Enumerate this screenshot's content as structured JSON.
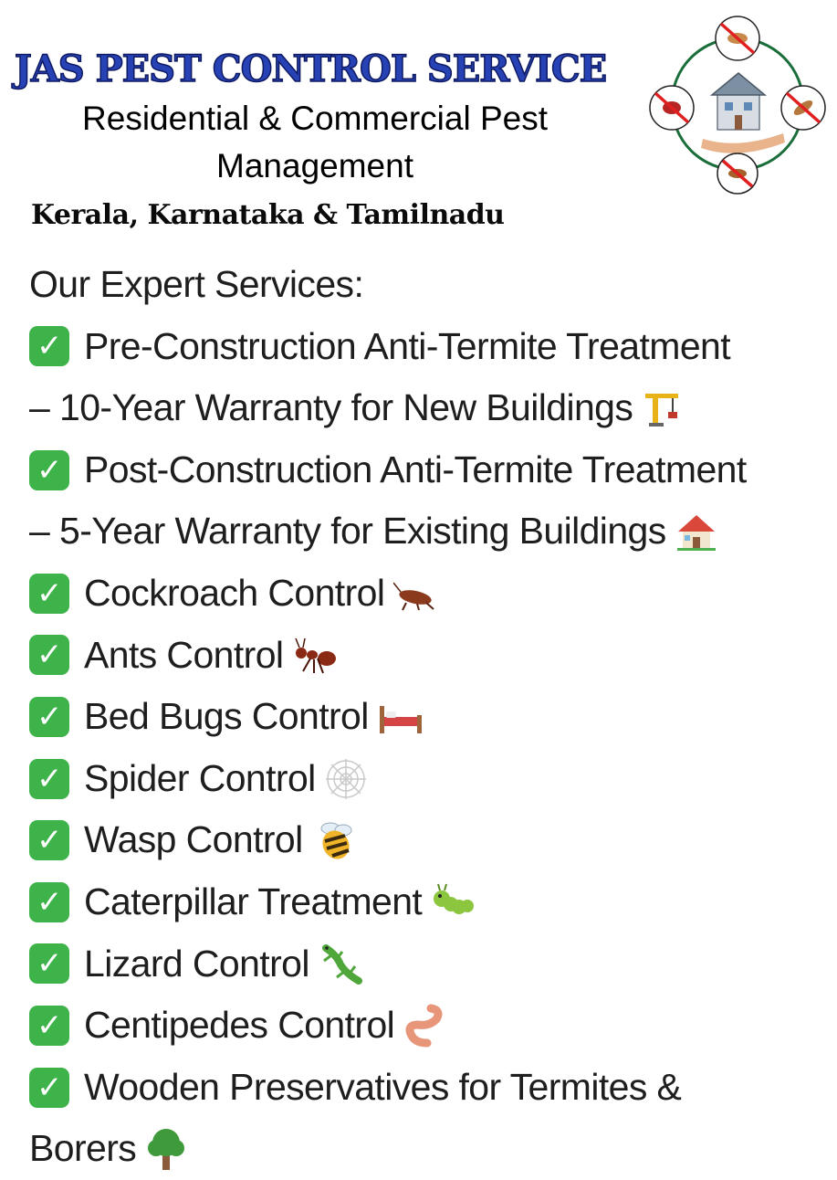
{
  "header": {
    "brand": "JAS PEST CONTROL SERVICE",
    "tagline_line1": "Residential & Commercial Pest",
    "tagline_line2": "Management",
    "regions": "Kerala, Karnataka & Tamilnadu"
  },
  "services": {
    "heading": "Our Expert Services:",
    "items": [
      {
        "line1": "Pre-Construction Anti-Termite Treatment",
        "line2": "– 10-Year Warranty for New Buildings",
        "icon": "crane-icon"
      },
      {
        "line1": "Post-Construction Anti-Termite Treatment",
        "line2": "– 5-Year Warranty for Existing Buildings",
        "icon": "house-icon"
      },
      {
        "line1": "Cockroach Control",
        "icon": "cockroach-icon"
      },
      {
        "line1": "Ants Control",
        "icon": "ant-icon"
      },
      {
        "line1": "Bed Bugs Control",
        "icon": "bed-icon"
      },
      {
        "line1": "Spider Control",
        "icon": "spider-web-icon"
      },
      {
        "line1": "Wasp Control",
        "icon": "bee-icon"
      },
      {
        "line1": "Caterpillar Treatment",
        "icon": "caterpillar-icon"
      },
      {
        "line1": "Lizard Control",
        "icon": "lizard-icon"
      },
      {
        "line1": "Centipedes Control",
        "icon": "worm-icon"
      },
      {
        "line1": "Wooden Preservatives for Termites &",
        "line2": "Borers",
        "icon": "tree-icon"
      }
    ]
  },
  "colors": {
    "brand": "#2742b4",
    "check": "#3db34a",
    "text": "#1e1e1e"
  }
}
